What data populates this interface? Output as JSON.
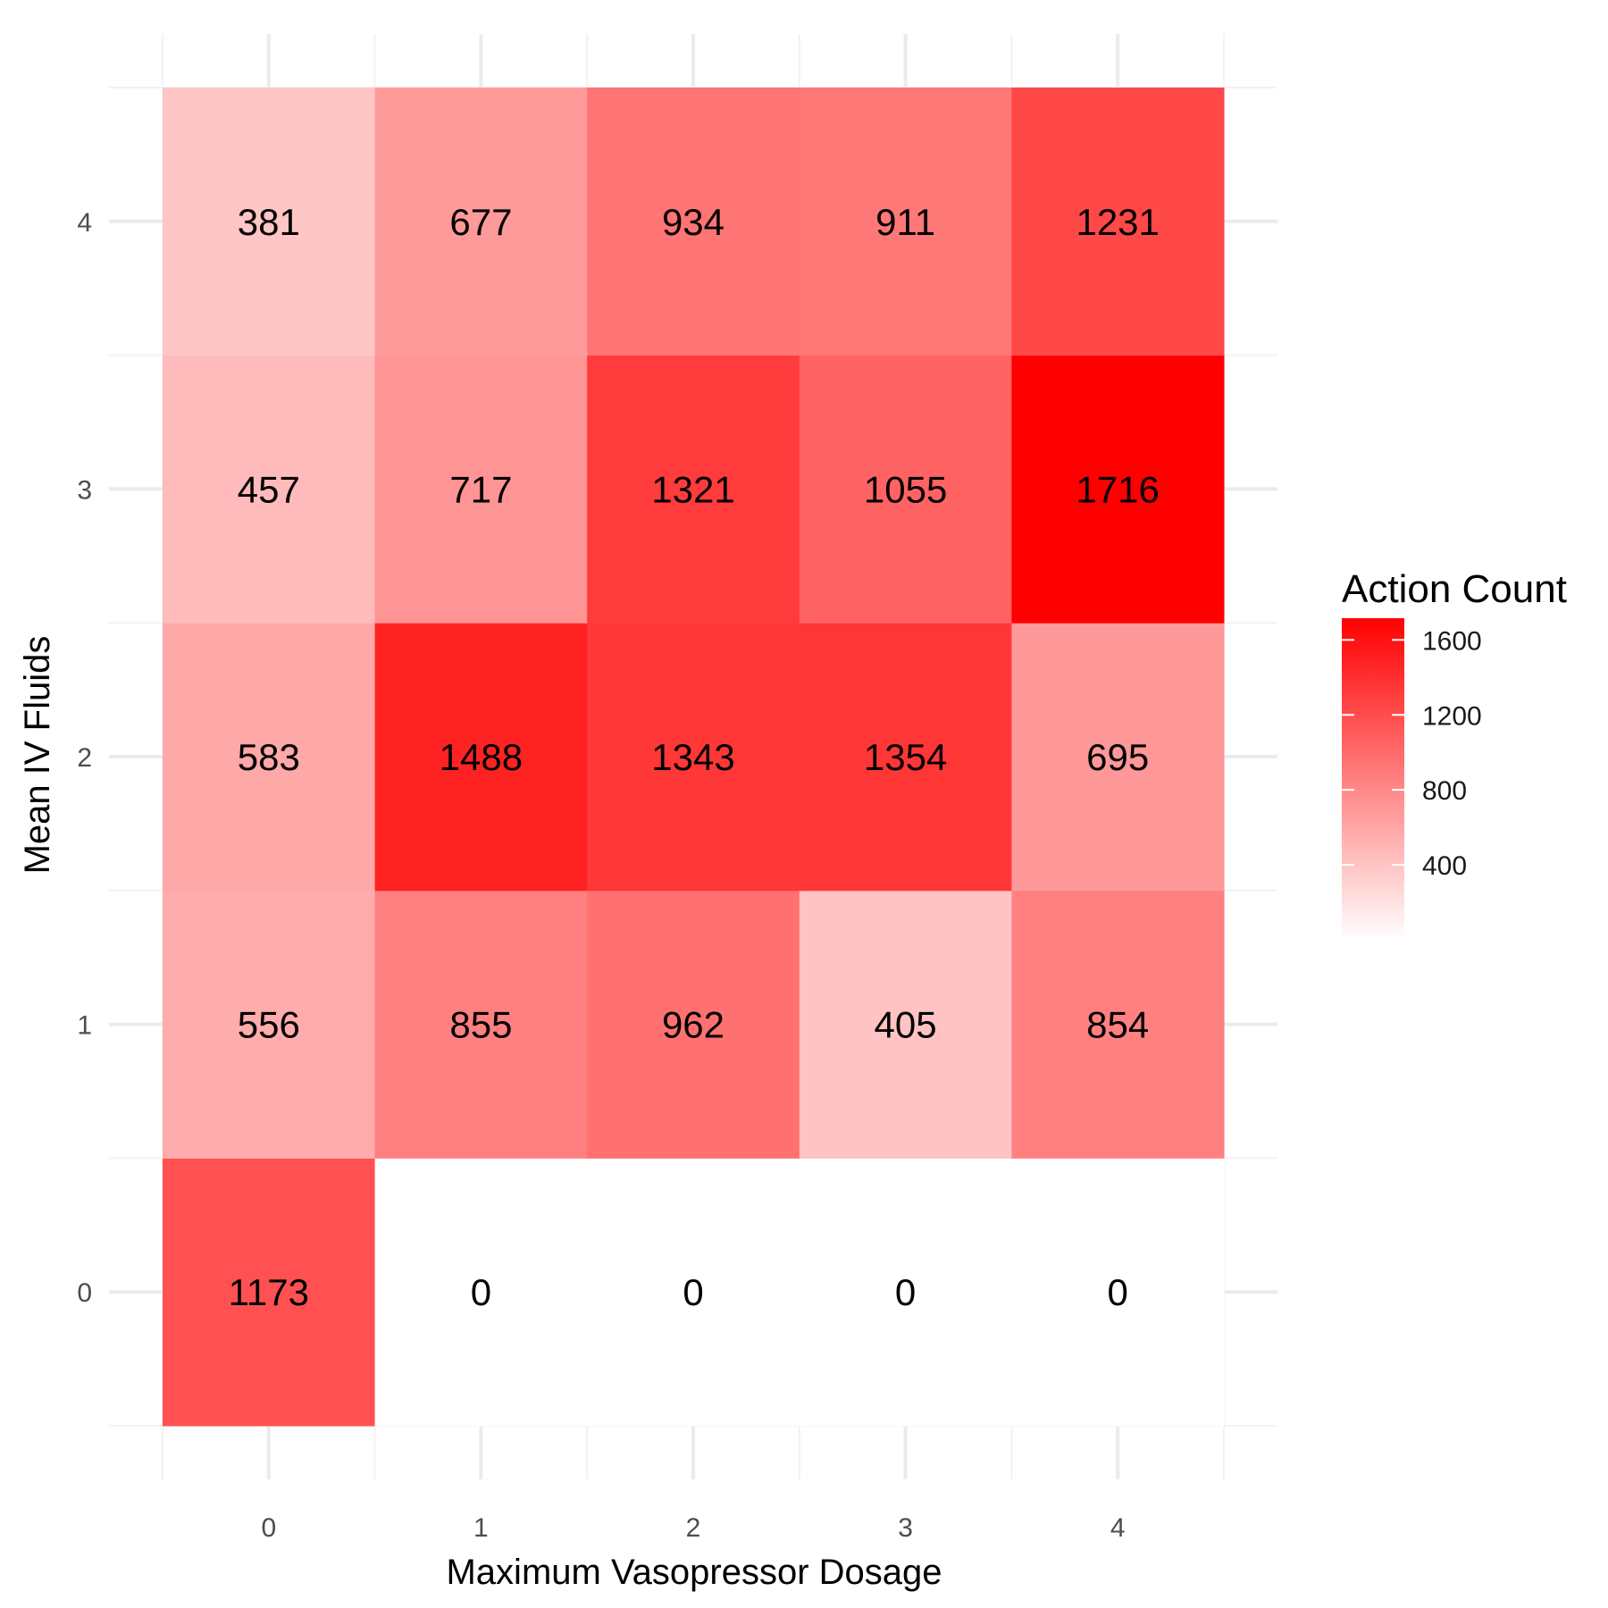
{
  "chart_data": {
    "type": "heatmap",
    "title": "",
    "xlabel": "Maximum Vasopressor Dosage",
    "ylabel": "Mean IV Fluids",
    "x_categories": [
      "0",
      "1",
      "2",
      "3",
      "4"
    ],
    "y_categories": [
      "0",
      "1",
      "2",
      "3",
      "4"
    ],
    "values": [
      [
        1173,
        0,
        0,
        0,
        0
      ],
      [
        556,
        855,
        962,
        405,
        854
      ],
      [
        583,
        1488,
        1343,
        1354,
        695
      ],
      [
        457,
        717,
        1321,
        1055,
        1716
      ],
      [
        381,
        677,
        934,
        911,
        1231
      ]
    ],
    "values_row_order": "rows indexed by y category, from 0 upward; columns indexed by x category",
    "grid": true,
    "legend": {
      "title": "Action Count",
      "position": "right",
      "min": 0,
      "max": 1716,
      "ticks": [
        400,
        800,
        1200,
        1600
      ],
      "tick_labels": [
        "400",
        "800",
        "1200",
        "1600"
      ],
      "low_color": "#ffffff",
      "high_color": "#ff0000"
    }
  }
}
